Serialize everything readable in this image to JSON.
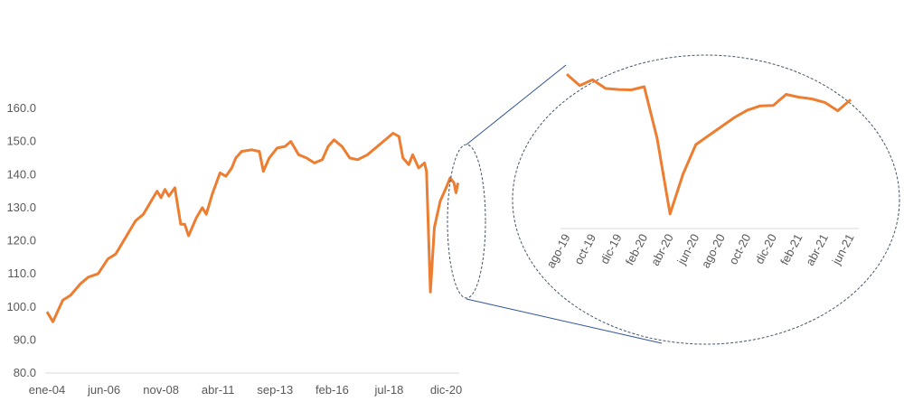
{
  "colors": {
    "line": "#ED7D31",
    "axis": "#D9D9D9",
    "ellipse": "#44546A",
    "connector": "#2F5597",
    "text": "#595959"
  },
  "chart_data": [
    {
      "type": "line",
      "title": "",
      "xlabel": "",
      "ylabel": "",
      "ylim": [
        80,
        160
      ],
      "y_ticks": [
        "80.0",
        "90.0",
        "100.0",
        "110.0",
        "120.0",
        "130.0",
        "140.0",
        "150.0",
        "160.0"
      ],
      "x_ticks": [
        {
          "label": "ene-04",
          "date": "2004-01"
        },
        {
          "label": "jun-06",
          "date": "2006-06"
        },
        {
          "label": "nov-08",
          "date": "2008-11"
        },
        {
          "label": "abr-11",
          "date": "2011-04"
        },
        {
          "label": "sep-13",
          "date": "2013-09"
        },
        {
          "label": "feb-16",
          "date": "2016-02"
        },
        {
          "label": "jul-18",
          "date": "2018-07"
        },
        {
          "label": "dic-20",
          "date": "2020-12"
        }
      ],
      "grid": false,
      "legend": "none",
      "series": [
        {
          "points": [
            [
              "2004-01",
              98.5
            ],
            [
              "2004-04",
              95.5
            ],
            [
              "2004-09",
              102
            ],
            [
              "2005-01",
              103.5
            ],
            [
              "2005-06",
              107
            ],
            [
              "2005-10",
              109
            ],
            [
              "2006-03",
              110
            ],
            [
              "2006-08",
              114.5
            ],
            [
              "2006-12",
              116
            ],
            [
              "2007-05",
              121
            ],
            [
              "2007-10",
              126
            ],
            [
              "2008-02",
              128
            ],
            [
              "2008-07",
              133
            ],
            [
              "2008-09",
              135
            ],
            [
              "2008-11",
              133
            ],
            [
              "2009-01",
              135.5
            ],
            [
              "2009-03",
              133.5
            ],
            [
              "2009-06",
              136
            ],
            [
              "2009-09",
              125
            ],
            [
              "2009-11",
              125
            ],
            [
              "2010-01",
              121.5
            ],
            [
              "2010-05",
              127
            ],
            [
              "2010-08",
              130
            ],
            [
              "2010-10",
              128
            ],
            [
              "2011-01",
              134
            ],
            [
              "2011-05",
              140.5
            ],
            [
              "2011-08",
              139.5
            ],
            [
              "2011-11",
              142
            ],
            [
              "2012-01",
              145
            ],
            [
              "2012-04",
              147
            ],
            [
              "2012-09",
              147.5
            ],
            [
              "2013-01",
              147
            ],
            [
              "2013-03",
              141
            ],
            [
              "2013-06",
              145
            ],
            [
              "2013-10",
              148
            ],
            [
              "2014-02",
              148.5
            ],
            [
              "2014-05",
              150
            ],
            [
              "2014-09",
              146
            ],
            [
              "2015-01",
              145
            ],
            [
              "2015-05",
              143.5
            ],
            [
              "2015-09",
              144.5
            ],
            [
              "2015-12",
              148.5
            ],
            [
              "2016-03",
              150.5
            ],
            [
              "2016-07",
              148.5
            ],
            [
              "2016-11",
              145
            ],
            [
              "2017-03",
              144.5
            ],
            [
              "2017-08",
              146
            ],
            [
              "2018-01",
              148.5
            ],
            [
              "2018-06",
              151
            ],
            [
              "2018-09",
              152.5
            ],
            [
              "2018-12",
              151.5
            ],
            [
              "2019-02",
              145
            ],
            [
              "2019-05",
              143
            ],
            [
              "2019-07",
              146
            ],
            [
              "2019-10",
              142
            ],
            [
              "2020-01",
              143.5
            ],
            [
              "2020-02",
              141
            ],
            [
              "2020-04",
              104.5
            ],
            [
              "2020-06",
              124
            ],
            [
              "2020-09",
              132
            ],
            [
              "2020-12",
              136
            ],
            [
              "2021-02",
              139
            ],
            [
              "2021-04",
              137.5
            ],
            [
              "2021-05",
              134.5
            ],
            [
              "2021-06",
              137.5
            ]
          ]
        }
      ]
    },
    {
      "type": "line",
      "title": "",
      "x_ticks": [
        "ago-19",
        "oct-19",
        "dic-19",
        "feb-20",
        "abr-20",
        "jun-20",
        "ago-20",
        "oct-20",
        "dic-20",
        "feb-21",
        "abr-21",
        "jun-21"
      ],
      "categories": [
        "ago-19",
        "sep-19",
        "oct-19",
        "nov-19",
        "dic-19",
        "ene-20",
        "feb-20",
        "mar-20",
        "abr-20",
        "may-20",
        "jun-20",
        "jul-20",
        "ago-20",
        "sep-20",
        "oct-20",
        "nov-20",
        "dic-20",
        "ene-21",
        "feb-21",
        "mar-21",
        "abr-21",
        "may-21",
        "jun-21"
      ],
      "values": [
        144.6,
        141.3,
        143,
        140.5,
        140.2,
        140.1,
        141,
        126.2,
        104.5,
        115.9,
        124.4,
        127,
        129.6,
        132.2,
        134.3,
        135.5,
        135.6,
        138.8,
        138,
        137.5,
        136.5,
        134.1,
        137.3
      ],
      "grid": false,
      "legend": "none",
      "note_visual": "zoomed inset of the final period, shown inside a dashed ellipse"
    }
  ]
}
